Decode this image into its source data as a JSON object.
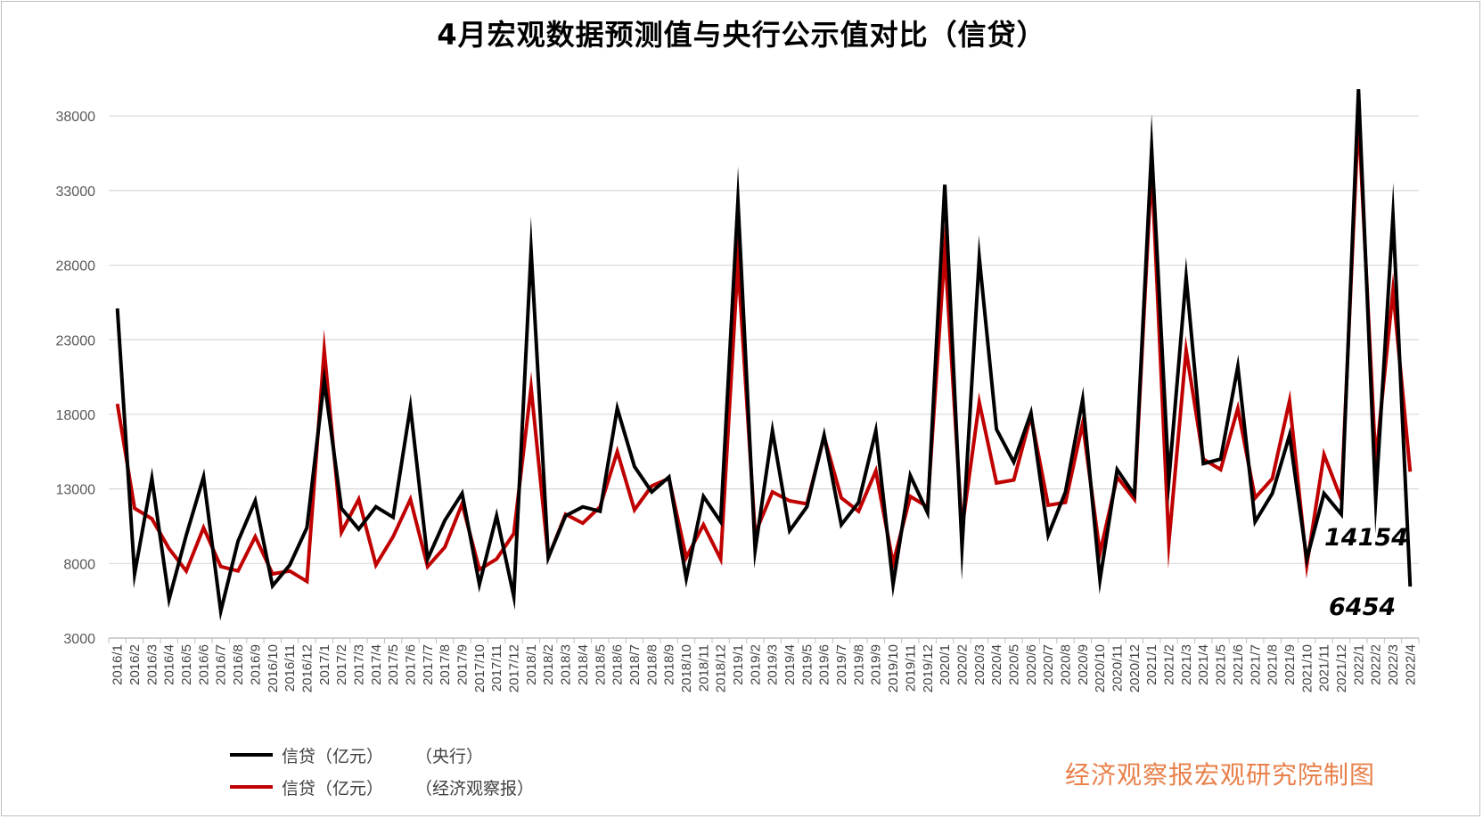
{
  "chart_data": {
    "type": "line",
    "title": "4月宏观数据预测值与央行公示值对比（信贷）",
    "ylim": [
      3000,
      41000
    ],
    "yticks": [
      3000,
      8000,
      13000,
      18000,
      23000,
      28000,
      33000,
      38000
    ],
    "grid": true,
    "legend_position": "bottom-left",
    "categories": [
      "2016/1",
      "2016/2",
      "2016/3",
      "2016/4",
      "2016/5",
      "2016/6",
      "2016/7",
      "2016/8",
      "2016/9",
      "2016/10",
      "2016/11",
      "2016/12",
      "2017/1",
      "2017/2",
      "2017/3",
      "2017/4",
      "2017/5",
      "2017/6",
      "2017/7",
      "2017/8",
      "2017/9",
      "2017/10",
      "2017/11",
      "2017/12",
      "2018/1",
      "2018/2",
      "2018/3",
      "2018/4",
      "2018/5",
      "2018/6",
      "2018/7",
      "2018/8",
      "2018/9",
      "2018/10",
      "2018/11",
      "2018/12",
      "2019/1",
      "2019/2",
      "2019/3",
      "2019/4",
      "2019/5",
      "2019/6",
      "2019/7",
      "2019/8",
      "2019/9",
      "2019/10",
      "2019/11",
      "2019/12",
      "2020/1",
      "2020/2",
      "2020/3",
      "2020/4",
      "2020/5",
      "2020/6",
      "2020/7",
      "2020/8",
      "2020/9",
      "2020/10",
      "2020/11",
      "2020/12",
      "2021/1",
      "2021/2",
      "2021/3",
      "2021/4",
      "2021/5",
      "2021/6",
      "2021/7",
      "2021/8",
      "2021/9",
      "2021/10",
      "2021/11",
      "2021/12",
      "2022/1",
      "2022/2",
      "2022/3",
      "2022/4"
    ],
    "series": [
      {
        "name": "信贷（亿元）",
        "source": "（央行）",
        "color": "#000000",
        "values": [
          25100,
          7300,
          13700,
          5600,
          9900,
          13800,
          4800,
          9500,
          12200,
          6500,
          7900,
          10400,
          20300,
          11700,
          10300,
          11800,
          11100,
          18500,
          8300,
          10900,
          12700,
          6600,
          11200,
          5800,
          29000,
          8400,
          11200,
          11800,
          11500,
          18400,
          14500,
          12800,
          13800,
          7000,
          12500,
          10800,
          32300,
          8900,
          16900,
          10200,
          11800,
          16600,
          10600,
          12100,
          16900,
          6600,
          13900,
          11400,
          33400,
          9100,
          28500,
          17000,
          14800,
          18100,
          9900,
          12800,
          19000,
          6900,
          14300,
          12600,
          35800,
          13600,
          27200,
          14700,
          15000,
          21200,
          10800,
          12700,
          16600,
          8300,
          12700,
          11300,
          39800,
          12300,
          31300,
          6454
        ]
      },
      {
        "name": "信贷（亿元）",
        "source": "（经济观察报）",
        "color": "#c00000",
        "values": [
          18700,
          11700,
          11000,
          9000,
          7500,
          10400,
          7800,
          7500,
          9800,
          7300,
          7500,
          6800,
          22300,
          10100,
          12300,
          7900,
          9800,
          12300,
          7800,
          9100,
          12000,
          7600,
          8300,
          10000,
          19800,
          8400,
          11300,
          10700,
          11800,
          15500,
          11600,
          13200,
          13700,
          8400,
          10600,
          8300,
          28200,
          10000,
          12800,
          12200,
          12000,
          16500,
          12400,
          11500,
          14200,
          8000,
          12500,
          11800,
          29000,
          10300,
          18800,
          13400,
          13600,
          17900,
          11900,
          12100,
          17400,
          8700,
          13800,
          12300,
          34600,
          9400,
          22300,
          15000,
          14300,
          18400,
          12400,
          13700,
          18900,
          7900,
          15300,
          12300,
          38000,
          14800,
          26300,
          14154
        ]
      }
    ],
    "annotations": [
      "14154",
      "6454"
    ]
  },
  "credit": "经济观察报宏观研究院制图"
}
